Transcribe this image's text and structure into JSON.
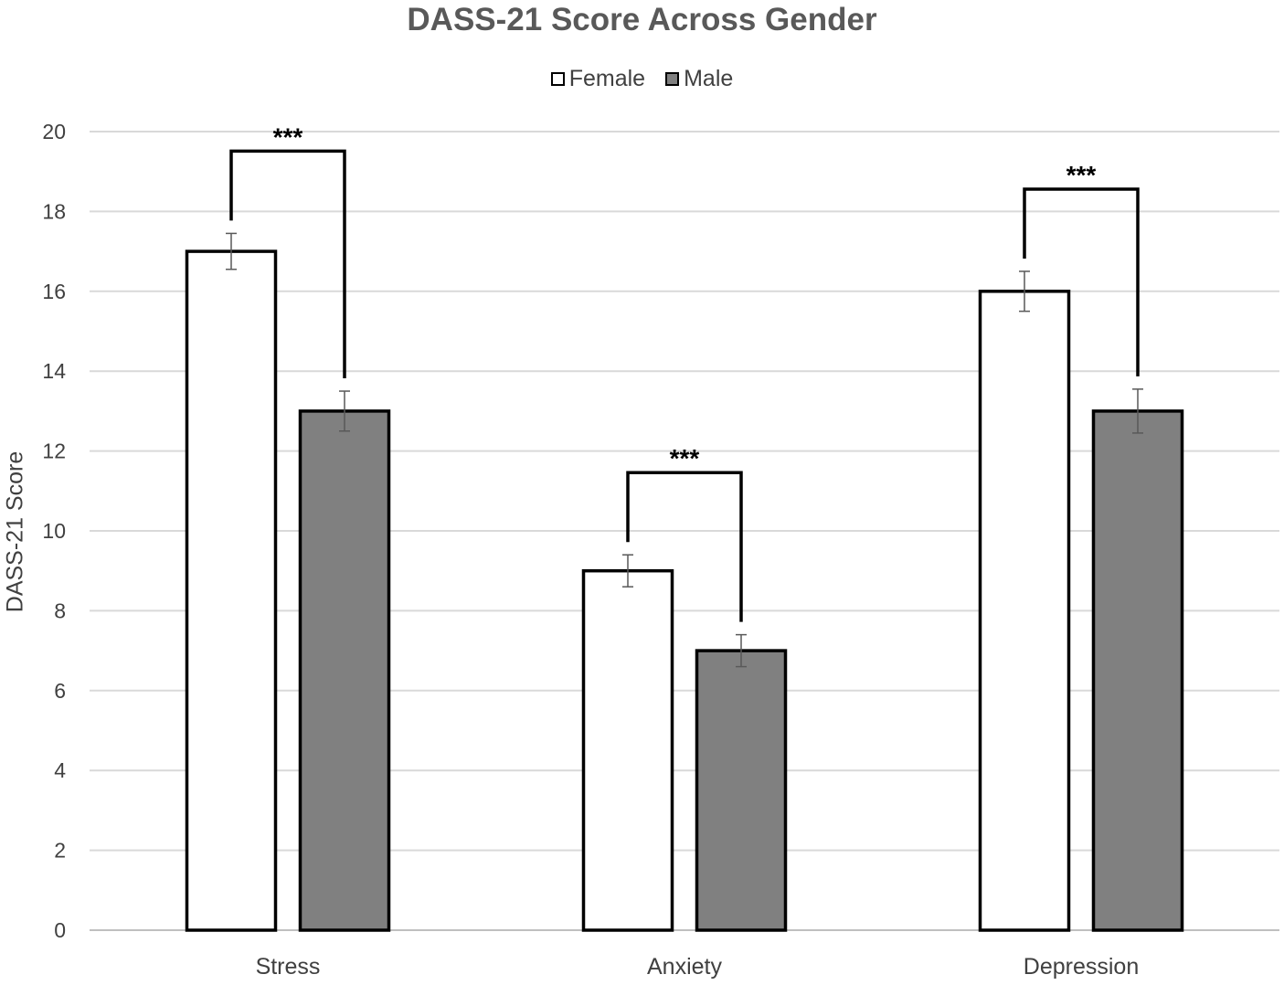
{
  "chart_data": {
    "type": "bar",
    "title": "DASS-21 Score Across Gender",
    "xlabel": "",
    "ylabel": "DASS-21 Score",
    "categories": [
      "Stress",
      "Anxiety",
      "Depression"
    ],
    "series": [
      {
        "name": "Female",
        "color": "#ffffff",
        "values": [
          17,
          9,
          16
        ],
        "error": [
          0.45,
          0.4,
          0.5
        ]
      },
      {
        "name": "Male",
        "color": "#808080",
        "values": [
          13,
          7,
          13
        ],
        "error": [
          0.5,
          0.4,
          0.55
        ]
      }
    ],
    "ylim": [
      0,
      20
    ],
    "yticks": [
      "0",
      "2",
      "4",
      "6",
      "8",
      "10",
      "12",
      "14",
      "16",
      "18",
      "20"
    ],
    "grid": true,
    "legend_position": "top-center",
    "significance": [
      {
        "category": "Stress",
        "label": "***"
      },
      {
        "category": "Anxiety",
        "label": "***"
      },
      {
        "category": "Depression",
        "label": "***"
      }
    ]
  }
}
